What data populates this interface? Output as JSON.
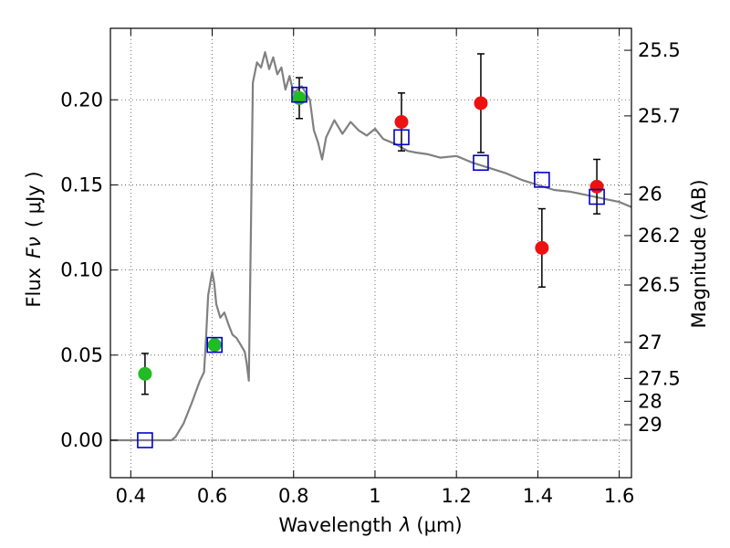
{
  "chart_data": {
    "type": "scatter",
    "xlabel": "Wavelength",
    "xlabel_symbol": "λ",
    "xlabel_unit": "(μm)",
    "ylabel": "Flux",
    "ylabel_symbol": "Fν",
    "ylabel_unit": "( μJy )",
    "y2label": "Magnitude (AB)",
    "xlim": [
      0.35,
      1.63
    ],
    "ylim": [
      -0.022,
      0.242
    ],
    "grid": true,
    "x_ticks": [
      0.4,
      0.6,
      0.8,
      1.0,
      1.2,
      1.4,
      1.6
    ],
    "x_tick_labels": [
      "0.4",
      "0.6",
      "0.8",
      "1",
      "1.2",
      "1.4",
      "1.6"
    ],
    "y_ticks": [
      0.0,
      0.05,
      0.1,
      0.15,
      0.2
    ],
    "y_tick_labels": [
      "0.00",
      "0.05",
      "0.10",
      "0.15",
      "0.20"
    ],
    "y2_tick_labels": [
      "25.5",
      "25.7",
      "26",
      "26.2",
      "26.5",
      "27",
      "27.5",
      "28",
      "29"
    ],
    "y2_tick_magnitudes": [
      25.5,
      25.7,
      26,
      26.2,
      26.5,
      27,
      27.5,
      28,
      29
    ],
    "colors": {
      "model_line": "#808080",
      "green_points": "#22bb22",
      "red_points": "#ee1111",
      "model_squares": "#0000cc",
      "error_bars": "#000000"
    },
    "series": [
      {
        "kind": "model-spectrum-line",
        "x": [
          0.35,
          0.5,
          0.51,
          0.53,
          0.55,
          0.57,
          0.58,
          0.585,
          0.59,
          0.6,
          0.605,
          0.61,
          0.62,
          0.63,
          0.64,
          0.65,
          0.66,
          0.67,
          0.68,
          0.685,
          0.69,
          0.695,
          0.7,
          0.71,
          0.72,
          0.73,
          0.74,
          0.75,
          0.76,
          0.77,
          0.78,
          0.79,
          0.8,
          0.82,
          0.84,
          0.85,
          0.86,
          0.87,
          0.88,
          0.9,
          0.92,
          0.94,
          0.96,
          0.98,
          1.0,
          1.02,
          1.05,
          1.08,
          1.1,
          1.13,
          1.16,
          1.2,
          1.24,
          1.28,
          1.32,
          1.36,
          1.4,
          1.44,
          1.48,
          1.52,
          1.56,
          1.6,
          1.63
        ],
        "y": [
          0.0,
          0.0,
          0.002,
          0.01,
          0.022,
          0.035,
          0.04,
          0.06,
          0.085,
          0.099,
          0.092,
          0.08,
          0.072,
          0.075,
          0.068,
          0.062,
          0.06,
          0.056,
          0.052,
          0.045,
          0.035,
          0.12,
          0.21,
          0.222,
          0.219,
          0.228,
          0.218,
          0.225,
          0.215,
          0.219,
          0.206,
          0.214,
          0.204,
          0.208,
          0.2,
          0.182,
          0.175,
          0.165,
          0.178,
          0.188,
          0.18,
          0.187,
          0.182,
          0.179,
          0.183,
          0.177,
          0.174,
          0.17,
          0.169,
          0.168,
          0.166,
          0.167,
          0.163,
          0.16,
          0.157,
          0.153,
          0.15,
          0.147,
          0.146,
          0.144,
          0.142,
          0.14,
          0.137
        ]
      },
      {
        "kind": "observed-green",
        "x": [
          0.435,
          0.606,
          0.814
        ],
        "y": [
          0.039,
          0.056,
          0.201
        ],
        "yerr": [
          0.012,
          0.003,
          0.012
        ]
      },
      {
        "kind": "observed-red",
        "x": [
          1.065,
          1.26,
          1.41,
          1.545
        ],
        "y": [
          0.187,
          0.198,
          0.113,
          0.149
        ],
        "yerr": [
          0.017,
          0.029,
          0.023,
          0.016
        ]
      },
      {
        "kind": "model-photometry-squares",
        "x": [
          0.435,
          0.606,
          0.814,
          1.065,
          1.26,
          1.41,
          1.545
        ],
        "y": [
          0.0,
          0.056,
          0.203,
          0.178,
          0.163,
          0.153,
          0.143
        ]
      }
    ]
  }
}
